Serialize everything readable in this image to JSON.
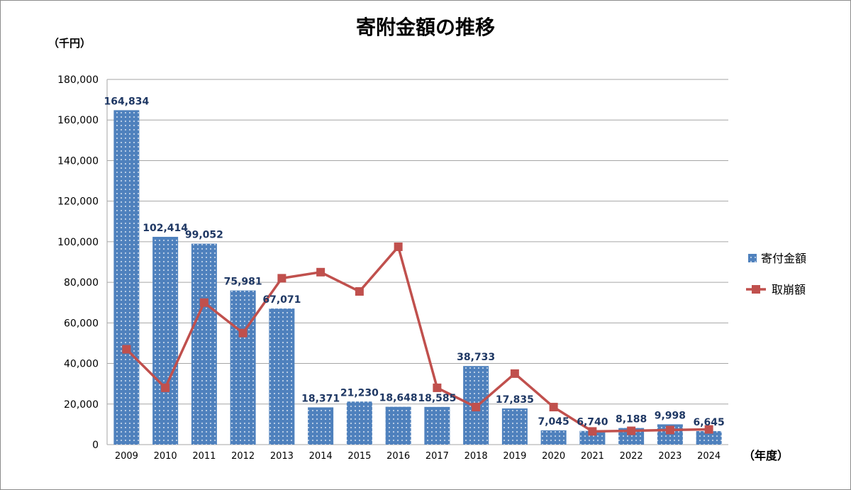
{
  "chart_data": {
    "type": "bar+line",
    "title": "寄附金額の推移",
    "ylabel": "（千円）",
    "xlabel": "（年度）",
    "ylim": [
      0,
      180000
    ],
    "yticks": [
      0,
      20000,
      40000,
      60000,
      80000,
      100000,
      120000,
      140000,
      160000,
      180000
    ],
    "ytick_labels": [
      "0",
      "20,000",
      "40,000",
      "60,000",
      "80,000",
      "100,000",
      "120,000",
      "140,000",
      "160,000",
      "180,000"
    ],
    "grid": true,
    "legend_position": "right",
    "categories": [
      "2009",
      "2010",
      "2011",
      "2012",
      "2013",
      "2014",
      "2015",
      "2016",
      "2017",
      "2018",
      "2019",
      "2020",
      "2021",
      "2022",
      "2023",
      "2024"
    ],
    "series": [
      {
        "name": "寄付金額",
        "type": "bar",
        "color": "#4f81bd",
        "values": [
          164834,
          102414,
          99052,
          75981,
          67071,
          18371,
          21230,
          18648,
          18585,
          38733,
          17835,
          7045,
          6740,
          8188,
          9998,
          6645
        ],
        "labels": [
          "164,834",
          "102,414",
          "99,052",
          "75,981",
          "67,071",
          "18,371",
          "21,230",
          "18,648",
          "18,585",
          "38,733",
          "17,835",
          "7,045",
          "6,740",
          "8,188",
          "9,998",
          "6,645"
        ]
      },
      {
        "name": "取崩額",
        "type": "line",
        "color": "#c0504d",
        "values": [
          47000,
          28000,
          70000,
          55000,
          82000,
          85000,
          75500,
          97500,
          28000,
          18500,
          35000,
          18500,
          6500,
          6800,
          7200,
          7500
        ]
      }
    ]
  }
}
